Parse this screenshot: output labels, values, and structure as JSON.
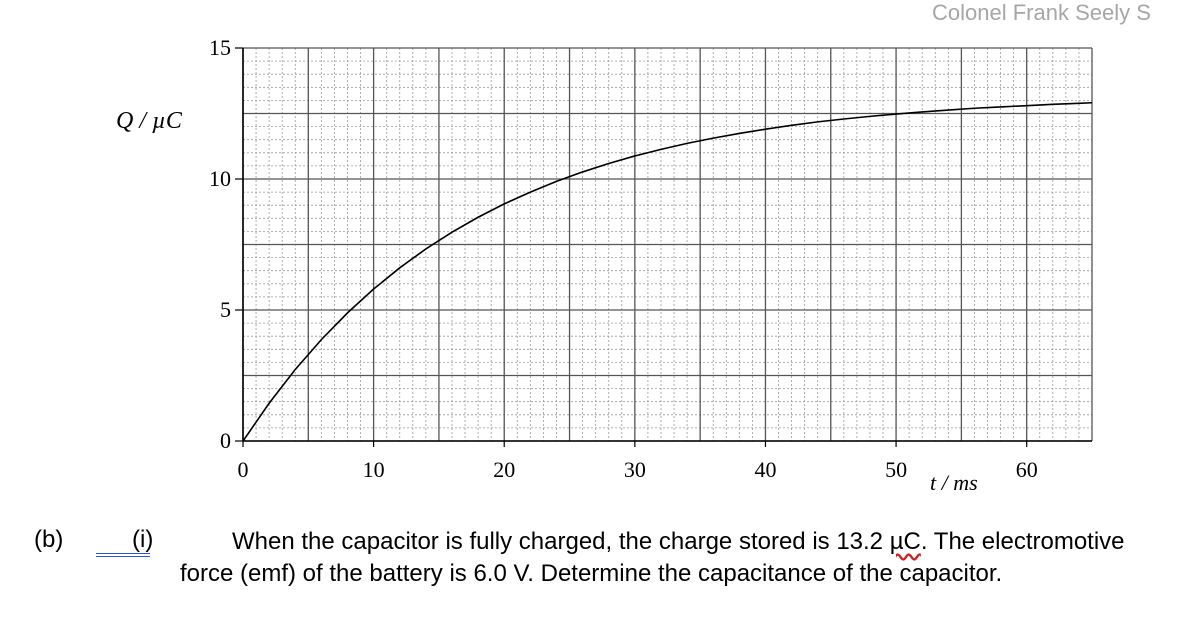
{
  "watermark": "Colonel Frank Seely S",
  "chart_data": {
    "type": "line",
    "xlabel": "t / ms",
    "ylabel": "Q / µC",
    "xlim": [
      0,
      65
    ],
    "ylim": [
      0,
      15
    ],
    "x_ticks": [
      0,
      10,
      20,
      30,
      40,
      50,
      60
    ],
    "y_ticks": [
      0,
      5,
      10,
      15
    ],
    "grid": true,
    "series": [
      {
        "x": [
          0,
          2,
          4,
          6,
          8,
          10,
          12,
          14,
          16,
          18,
          20,
          22,
          24,
          26,
          28,
          30,
          32,
          34,
          36,
          38,
          40,
          42,
          44,
          46,
          48,
          50,
          52,
          54,
          56,
          58,
          60,
          62,
          64,
          65
        ],
        "values": [
          0,
          1.44,
          2.73,
          3.87,
          4.89,
          5.8,
          6.61,
          7.33,
          7.97,
          8.54,
          9.05,
          9.5,
          9.91,
          10.27,
          10.59,
          10.88,
          11.13,
          11.36,
          11.56,
          11.74,
          11.9,
          12.05,
          12.18,
          12.29,
          12.39,
          12.48,
          12.56,
          12.63,
          12.7,
          12.75,
          12.8,
          12.85,
          12.89,
          12.91
        ]
      }
    ]
  },
  "question": {
    "part": "(b)",
    "sub": "(i)",
    "text_before": "When the capacitor is fully charged, the charge stored is 13.2 ",
    "unit": "µC",
    "text_after": ". The electromotive force (emf) of the battery is 6.0 V. Determine the capacitance of the capacitor."
  }
}
